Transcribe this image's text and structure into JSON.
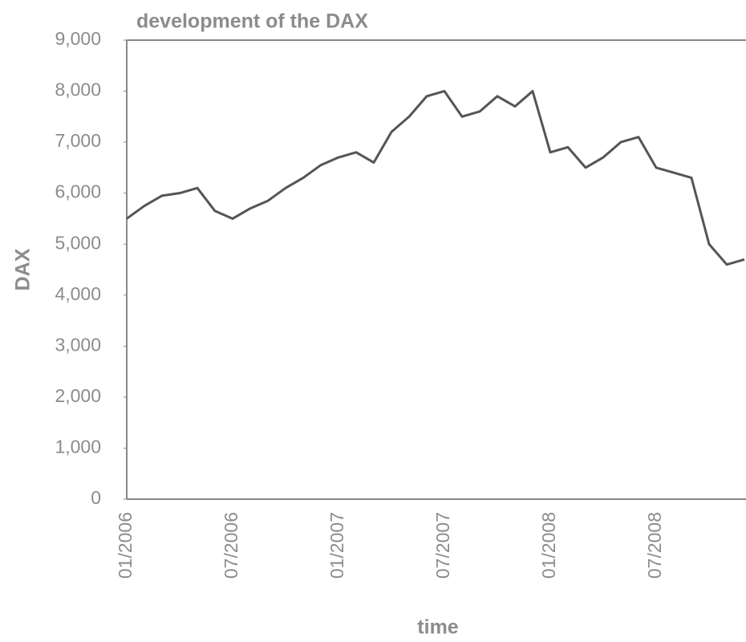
{
  "chart_data": {
    "type": "line",
    "title": "development of the DAX",
    "x_label": "time",
    "y_label": "DAX",
    "x": [
      "01/2006",
      "02/2006",
      "03/2006",
      "04/2006",
      "05/2006",
      "06/2006",
      "07/2006",
      "08/2006",
      "09/2006",
      "10/2006",
      "11/2006",
      "12/2006",
      "01/2007",
      "02/2007",
      "03/2007",
      "04/2007",
      "05/2007",
      "06/2007",
      "07/2007",
      "08/2007",
      "09/2007",
      "10/2007",
      "11/2007",
      "12/2007",
      "01/2008",
      "02/2008",
      "03/2008",
      "04/2008",
      "05/2008",
      "06/2008",
      "07/2008",
      "08/2008",
      "09/2008",
      "10/2008",
      "11/2008",
      "12/2008"
    ],
    "values": [
      5500,
      5750,
      5950,
      6000,
      6100,
      5650,
      5500,
      5700,
      5850,
      6100,
      6300,
      6550,
      6700,
      6800,
      6600,
      7200,
      7500,
      7900,
      8000,
      7500,
      7600,
      7900,
      7700,
      8000,
      6800,
      6900,
      6500,
      6700,
      7000,
      7100,
      6500,
      6400,
      6300,
      5000,
      4600,
      4700
    ],
    "color": "#555555",
    "xticks": [
      "01/2006",
      "07/2006",
      "01/2007",
      "07/2007",
      "01/2008",
      "07/2008"
    ],
    "ylim": [
      0,
      9000
    ],
    "yticks": [
      0,
      {
        "value": 1000,
        "label": "1,000"
      },
      {
        "value": 2000,
        "label": "2,000"
      },
      {
        "value": 3000,
        "label": "3,000"
      },
      {
        "value": 4000,
        "label": "4,000"
      },
      {
        "value": 5000,
        "label": "5,000"
      },
      {
        "value": 6000,
        "label": "6,000"
      },
      {
        "value": 7000,
        "label": "7,000"
      },
      {
        "value": 8000,
        "label": "8,000"
      },
      {
        "value": 9000,
        "label": "9,000"
      }
    ],
    "grid": false
  }
}
